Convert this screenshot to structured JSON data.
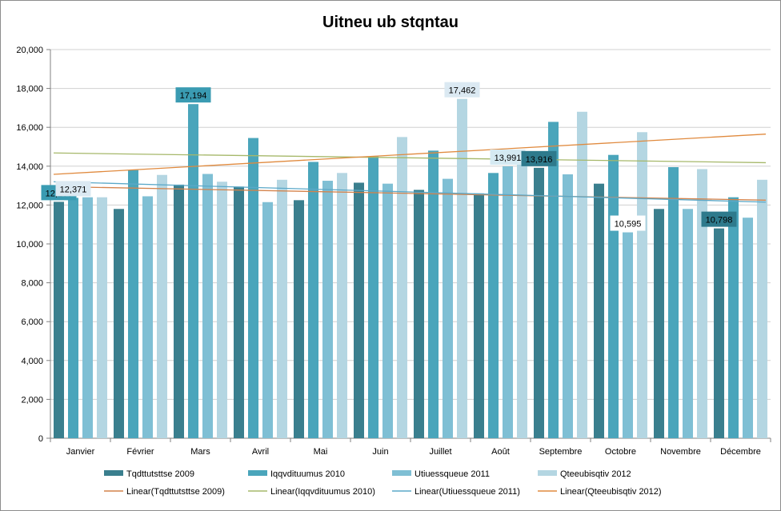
{
  "chart_data": {
    "type": "bar",
    "title": "Uitneu ub stqntau",
    "xlabel": "",
    "ylabel": "",
    "ylim": [
      0,
      20000
    ],
    "yticks": [
      0,
      2000,
      4000,
      6000,
      8000,
      10000,
      12000,
      14000,
      16000,
      18000,
      20000
    ],
    "ytick_labels": [
      "0",
      "2,000",
      "4,000",
      "6,000",
      "8,000",
      "10,000",
      "12,000",
      "14,000",
      "16,000",
      "18,000",
      "20,000"
    ],
    "grid": "horizontal",
    "legend_position": "bottom",
    "categories": [
      "Janvier",
      "Février",
      "Mars",
      "Avril",
      "Mai",
      "Juin",
      "Juillet",
      "Août",
      "Septembre",
      "Octobre",
      "Novembre",
      "Décembre"
    ],
    "series": [
      {
        "name": "Tqdttutsttse 2009",
        "color": "#3a7f8e",
        "values": [
          12166,
          11800,
          13050,
          12950,
          12250,
          13150,
          12780,
          12600,
          13916,
          13100,
          11800,
          10798
        ]
      },
      {
        "name": "Iqqvdituumus 2010",
        "color": "#4aa5bb",
        "values": [
          12371,
          13800,
          17194,
          15450,
          14220,
          14500,
          14800,
          13650,
          16280,
          14580,
          13950,
          12400
        ]
      },
      {
        "name": "Utiuessqueue 2011",
        "color": "#7fbfd4",
        "values": [
          12400,
          12450,
          13600,
          12150,
          13250,
          13100,
          13350,
          13991,
          13580,
          10595,
          11800,
          11350
        ]
      },
      {
        "name": "Qteeubisqtiv 2012",
        "color": "#b4d6e2",
        "values": [
          12400,
          13550,
          13200,
          13300,
          13650,
          15500,
          17462,
          14400,
          16800,
          15750,
          13850,
          13300
        ]
      }
    ],
    "trendlines": [
      {
        "name": "Linear(Tqdttutsttse 2009)",
        "color": "#d4824a",
        "start": 12950,
        "end": 12250
      },
      {
        "name": "Linear(Iqqvdituumus 2010)",
        "color": "#a6b86a",
        "start": 14680,
        "end": 14180
      },
      {
        "name": "Linear(Utiuessqueue 2011)",
        "color": "#5ba8c8",
        "start": 13200,
        "end": 12150
      },
      {
        "name": "Linear(Qteeubisqtiv 2012)",
        "color": "#e08a3e",
        "start": 13580,
        "end": 15650
      }
    ],
    "data_labels": [
      {
        "text": "12,166",
        "series": 0,
        "category": 0,
        "bg": "#3a9bb2",
        "fg": "#000000"
      },
      {
        "text": "12,371",
        "series": 1,
        "category": 0,
        "bg": "#dbe9f2",
        "fg": "#000000"
      },
      {
        "text": "17,194",
        "series": 1,
        "category": 2,
        "bg": "#3a9bb2",
        "fg": "#000000"
      },
      {
        "text": "17,462",
        "series": 3,
        "category": 6,
        "bg": "#dbe9f2",
        "fg": "#000000"
      },
      {
        "text": "13,991",
        "series": 2,
        "category": 7,
        "bg": "#d5eaf2",
        "fg": "#000000"
      },
      {
        "text": "13,916",
        "series": 0,
        "category": 8,
        "bg": "#2e7a8c",
        "fg": "#000000"
      },
      {
        "text": "10,595",
        "series": 2,
        "category": 9,
        "bg": "#ffffff",
        "fg": "#000000"
      },
      {
        "text": "10,798",
        "series": 0,
        "category": 11,
        "bg": "#2e7a8c",
        "fg": "#000000"
      }
    ]
  }
}
